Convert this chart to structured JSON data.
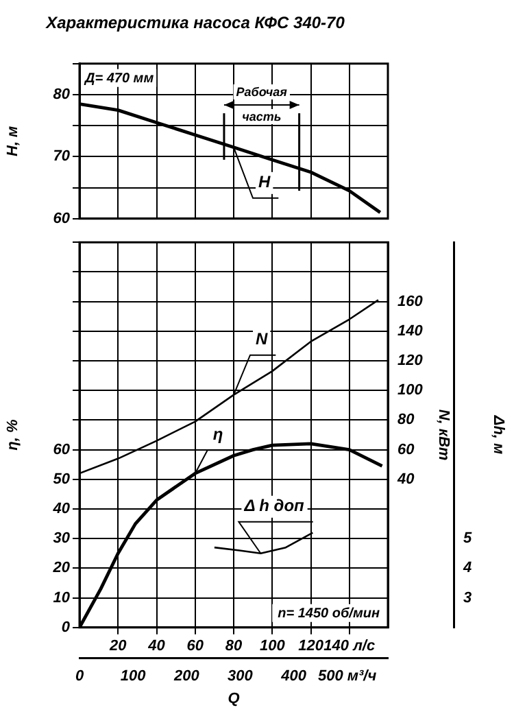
{
  "chart_data": [
    {
      "type": "line",
      "title": "Характеристика насоса КФС 340-70",
      "xlim": [
        0,
        160
      ],
      "xticks": [
        20,
        40,
        60,
        80,
        100,
        120,
        140
      ],
      "tick_labels": "y",
      "ylabel": "H, м",
      "ylim": [
        60,
        85
      ],
      "yticks": [
        60,
        {
          "value": 65,
          "label": null
        },
        70,
        {
          "value": 75,
          "label": null
        },
        80,
        {
          "value": 85,
          "label": null
        }
      ],
      "grid": true,
      "series": [
        {
          "name": "H",
          "color": "#000000",
          "x": [
            0,
            20,
            40,
            60,
            80,
            100,
            120,
            140,
            156
          ],
          "values": [
            78.5,
            77.5,
            75.5,
            73.5,
            71.5,
            69.5,
            67.5,
            64.5,
            61
          ]
        }
      ],
      "ref_lines": [
        {
          "axis": "x",
          "value": 75
        },
        {
          "axis": "x",
          "value": 114
        }
      ],
      "annotations": [
        "Д= 470 мм",
        "Рабочая часть"
      ]
    },
    {
      "type": "line",
      "xlabel": "Q",
      "xlim": [
        0,
        160
      ],
      "xticks": [
        20,
        40,
        60,
        80,
        100,
        120,
        {
          "value": 140,
          "label": "140 л/с"
        }
      ],
      "x2lim": [
        0,
        576
      ],
      "x2ticks": [
        0,
        100,
        200,
        300,
        400,
        {
          "value": 500,
          "label": "500 м³/ч"
        }
      ],
      "ylabel": "η, %",
      "ylim": [
        0,
        130
      ],
      "yticks": [
        0,
        10,
        20,
        30,
        40,
        50,
        60,
        {
          "value": 70,
          "label": null
        },
        {
          "value": 80,
          "label": null
        },
        {
          "value": 90,
          "label": null
        },
        {
          "value": 100,
          "label": null
        },
        {
          "value": 110,
          "label": null
        },
        {
          "value": 120,
          "label": null
        },
        {
          "value": 130,
          "label": null
        }
      ],
      "y2label": "N, кВт",
      "y2lim": [
        -60,
        200
      ],
      "y2ticks": [
        40,
        60,
        80,
        100,
        120,
        140,
        160
      ],
      "y3label": "Δh, м",
      "y3lim": [
        2,
        15
      ],
      "y3ticks": [
        3,
        4,
        5
      ],
      "grid": true,
      "series": [
        {
          "name": "N",
          "color": "#000000",
          "axis": "y2",
          "x": [
            0,
            20,
            40,
            60,
            80,
            100,
            120,
            140,
            155
          ],
          "values": [
            44,
            54,
            66,
            79,
            97,
            113,
            133,
            148,
            161
          ]
        },
        {
          "name": "η",
          "color": "#000000",
          "x": [
            0,
            11,
            20,
            29,
            40,
            60,
            80,
            90,
            100,
            120,
            140,
            157
          ],
          "values": [
            0,
            13,
            25,
            35,
            43,
            52,
            58,
            60,
            61.5,
            62,
            60,
            54.5
          ]
        },
        {
          "name": "Δ h доп",
          "color": "#000000",
          "axis": "y3",
          "x": [
            70,
            83,
            94,
            107,
            121
          ],
          "values": [
            4.7,
            4.6,
            4.5,
            4.7,
            5.2
          ]
        }
      ],
      "annotations": [
        "n= 1450 об/мин"
      ]
    }
  ]
}
